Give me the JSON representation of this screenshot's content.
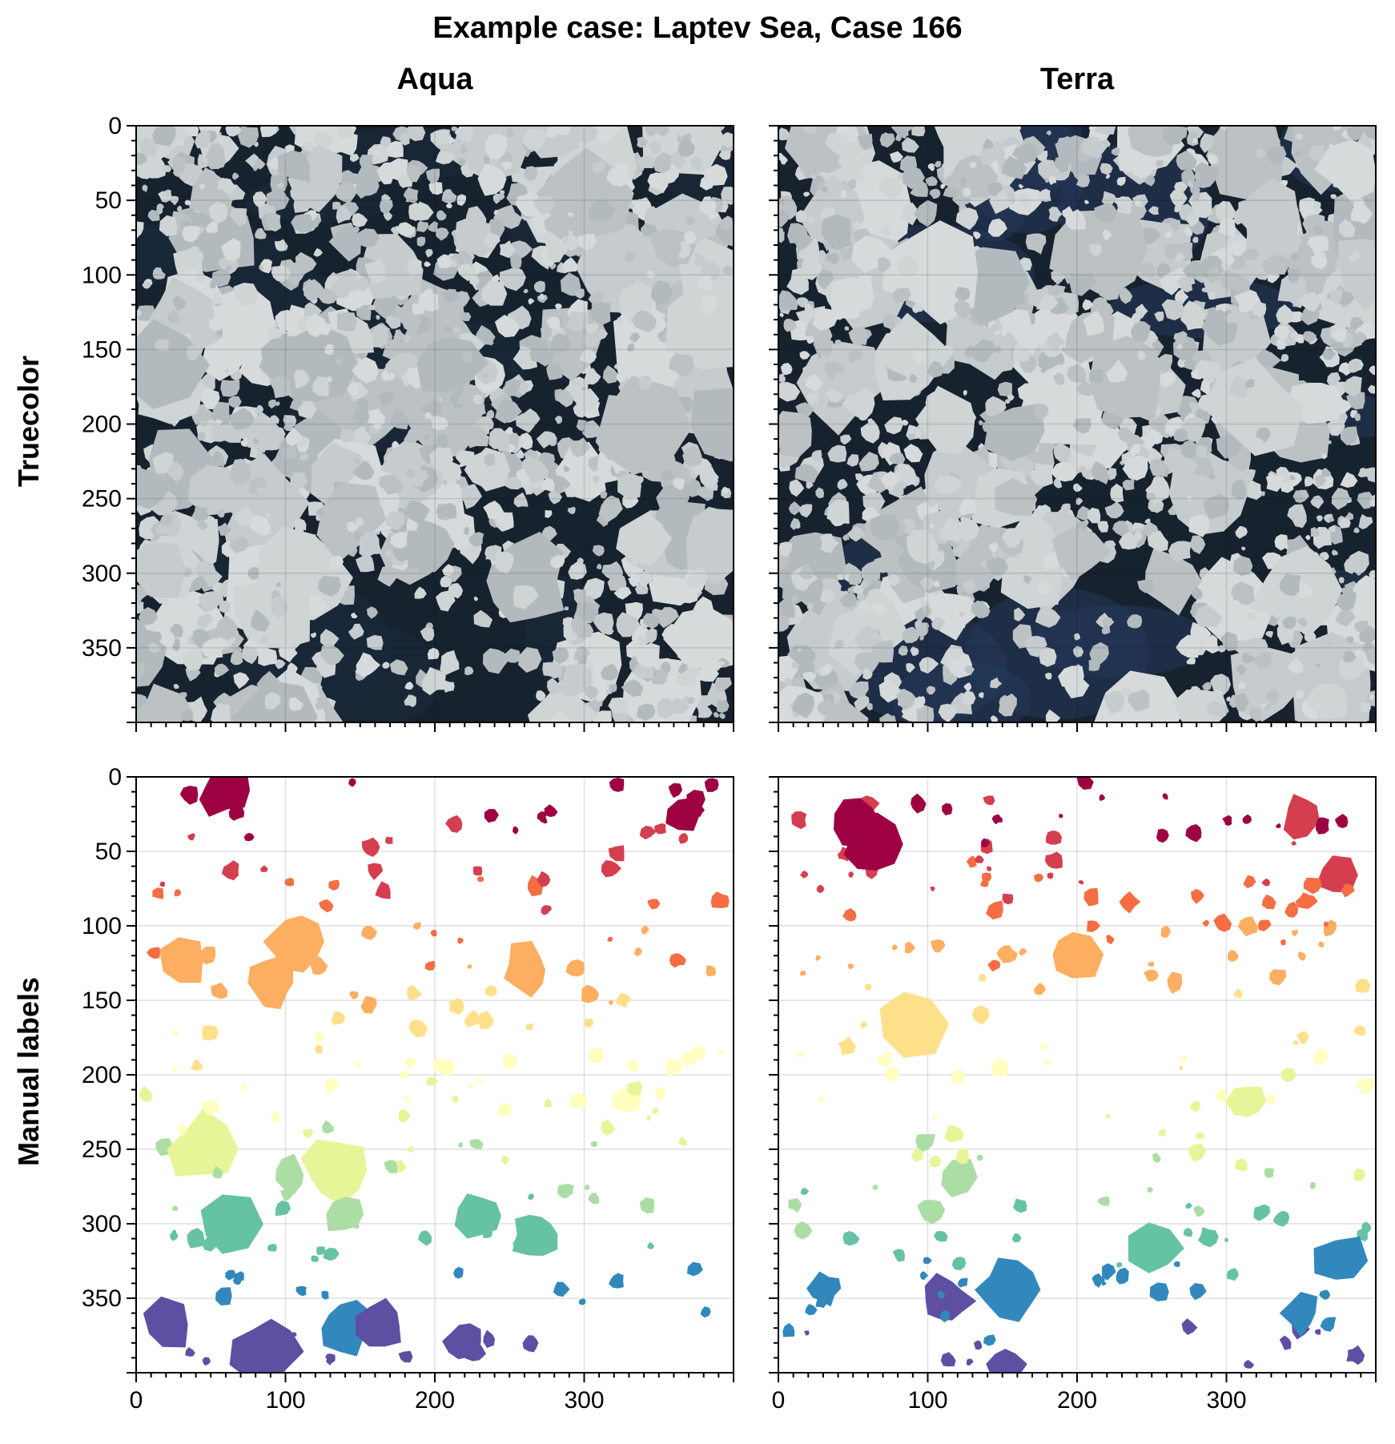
{
  "figure": {
    "suptitle": "Example case: Laptev Sea, Case 166",
    "column_titles": [
      "Aqua",
      "Terra"
    ],
    "row_titles": [
      "Truecolor",
      "Manual labels"
    ]
  },
  "axes": {
    "x_ticks": [
      0,
      100,
      200,
      300
    ],
    "y_ticks": [
      0,
      50,
      100,
      150,
      200,
      250,
      300,
      350
    ],
    "x_range": [
      0,
      400
    ],
    "y_range": [
      0,
      400
    ],
    "y_inverted": true,
    "grid": true
  },
  "colors": {
    "ice": "#c9ced0",
    "water": "#17222f",
    "label_colormap": [
      "#9e0142",
      "#d53e4f",
      "#f46d43",
      "#fdae61",
      "#fee08b",
      "#ffffbf",
      "#e6f598",
      "#abdda4",
      "#66c2a5",
      "#3288bd",
      "#5e4fa2"
    ]
  }
}
